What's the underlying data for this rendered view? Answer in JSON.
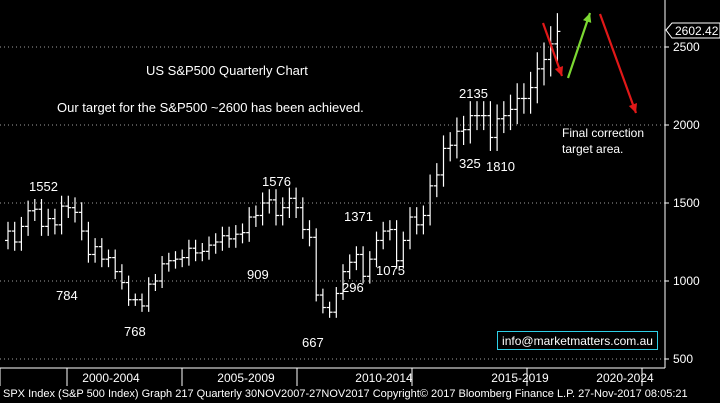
{
  "chart_data": {
    "type": "ohlc",
    "title": "US S&P500 Quarterly Chart",
    "subtitle": "Our target for the S&P500 ~2600 has been achieved.",
    "y_axis": {
      "position": "right",
      "ticks": [
        "500",
        "1000",
        "1500",
        "2000",
        "2500"
      ],
      "range": [
        450,
        2800
      ],
      "gridlines": "dotted"
    },
    "x_axis": {
      "period_labels": [
        "2000-2004",
        "2005-2009",
        "2010-2014",
        "2015-2019",
        "2020-2024"
      ]
    },
    "last_price": "2602.42",
    "quarterly_closes": [
      1320,
      1250,
      1350,
      1450,
      1460,
      1350,
      1400,
      1360,
      1480,
      1470,
      1440,
      1320,
      1170,
      1220,
      1140,
      1150,
      1060,
      990,
      880,
      880,
      840,
      980,
      1000,
      1110,
      1130,
      1140,
      1150,
      1210,
      1180,
      1190,
      1230,
      1250,
      1290,
      1270,
      1300,
      1310,
      1410,
      1420,
      1500,
      1520,
      1420,
      1470,
      1530,
      1470,
      1330,
      1280,
      910,
      830,
      800,
      920,
      1060,
      1120,
      1170,
      1030,
      1140,
      1260,
      1320,
      1330,
      1130,
      1260,
      1410,
      1360,
      1420,
      1610,
      1680,
      1850,
      1870,
      1960,
      1970,
      2060,
      2060,
      2060,
      1920,
      2040,
      2060,
      2100,
      2170,
      2170,
      2240,
      2360,
      2420,
      2520,
      2600
    ],
    "annotations": [
      {
        "text": "1552",
        "color": "#ffffff"
      },
      {
        "text": "784",
        "color": "#ffff00"
      },
      {
        "text": "768",
        "color": "#ffffff"
      },
      {
        "text": "1576",
        "color": "#ffffff"
      },
      {
        "text": "909",
        "color": "#ffff00"
      },
      {
        "text": "667",
        "color": "#ffffff"
      },
      {
        "text": "1371",
        "color": "#ffffff"
      },
      {
        "text": "296",
        "color": "#ffff00"
      },
      {
        "text": "1075",
        "color": "#ffffff"
      },
      {
        "text": "2135",
        "color": "#ffffff"
      },
      {
        "text": "325",
        "color": "#ffff00"
      },
      {
        "text": "1810",
        "color": "#ffffff"
      }
    ],
    "projection_note": "Final correction target area.",
    "projection_arrows": [
      {
        "name": "red-arrow-down-1",
        "color": "#e01818"
      },
      {
        "name": "green-arrow-up",
        "color": "#7cd832"
      },
      {
        "name": "red-arrow-down-2",
        "color": "#e01818"
      }
    ],
    "colors": {
      "background": "#000000",
      "bars": "#ffffff",
      "title": "#7fd68f",
      "highlight": "#ffff00",
      "projection": "#e01818",
      "grid": "#a0a0a0"
    }
  },
  "email": "info@marketmatters.com.au",
  "footer": "SPX Index (S&P 500 Index) Graph 217  Quarterly 30NOV2007-27NOV2017 Copyright© 2017 Bloomberg Finance L.P.  27-Nov-2017 08:05:21"
}
